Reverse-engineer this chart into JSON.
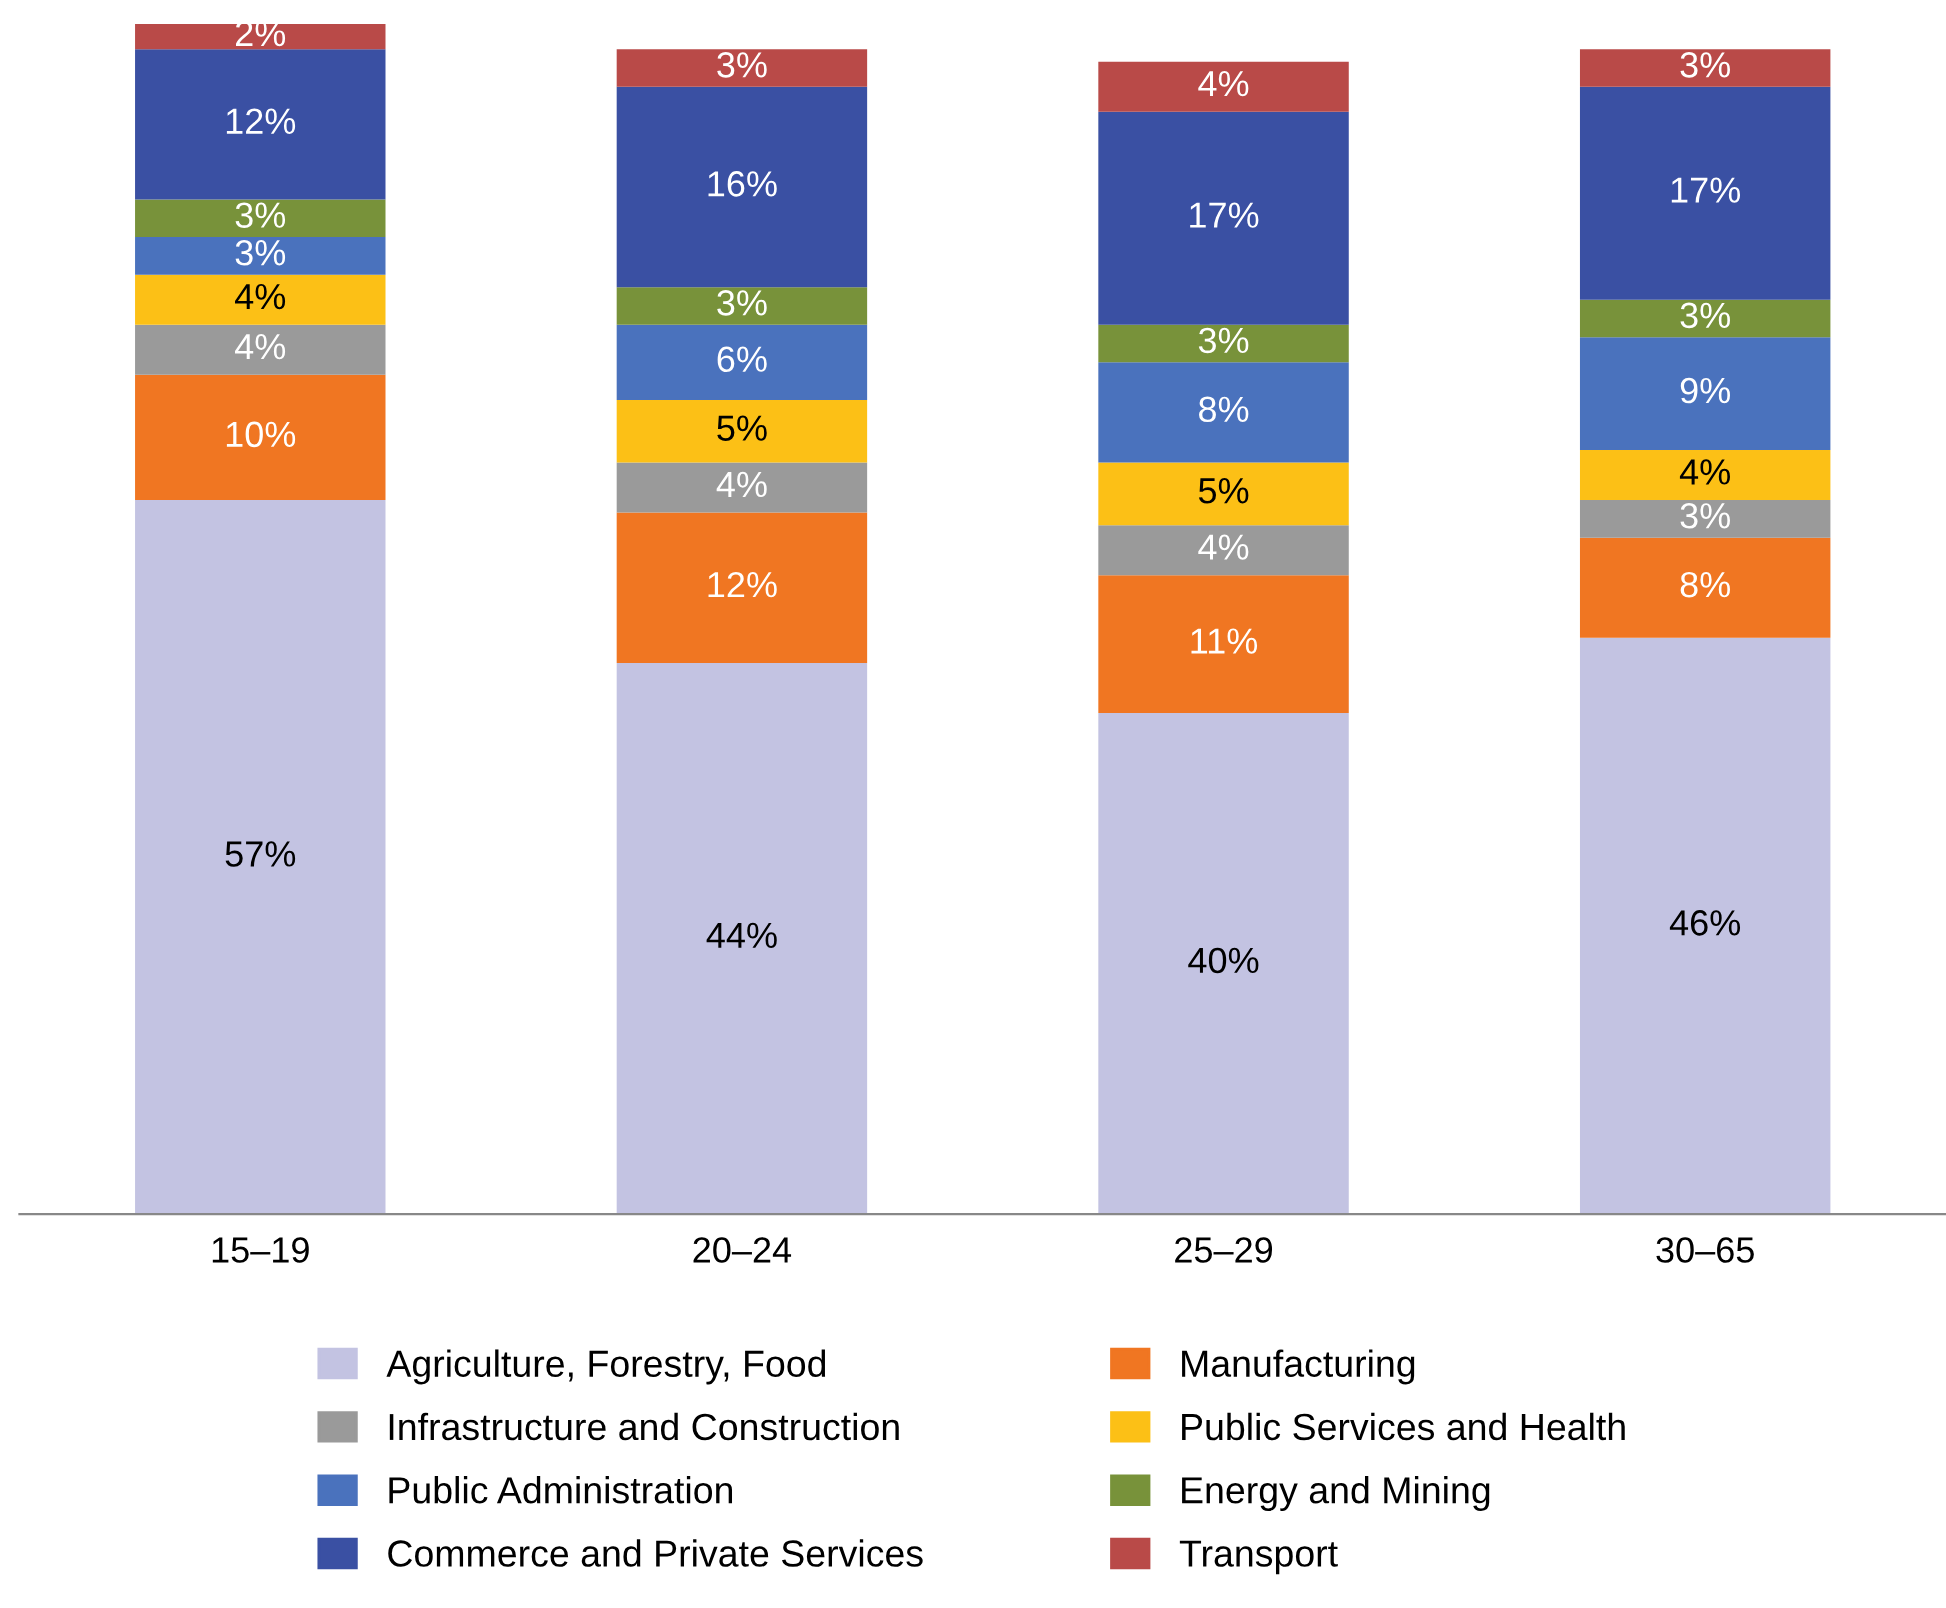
{
  "chart_data": {
    "type": "bar",
    "stacked": true,
    "grid": false,
    "legend": "bottom",
    "categories": [
      "15–19",
      "20–24",
      "25–29",
      "30–65"
    ],
    "series": [
      {
        "name": "Agriculture, Forestry, Food",
        "color": "#c3c3e2",
        "values": [
          57,
          44,
          40,
          46
        ],
        "value_labels": [
          "57%",
          "44%",
          "40%",
          "46%"
        ]
      },
      {
        "name": "Manufacturing",
        "color": "#f07622",
        "values": [
          10,
          12,
          11,
          8
        ],
        "value_labels": [
          "10%",
          "12%",
          "11%",
          "8%"
        ]
      },
      {
        "name": "Infrastructure and Construction",
        "color": "#9a9a9a",
        "values": [
          4,
          4,
          4,
          3
        ],
        "value_labels": [
          "4%",
          "4%",
          "4%",
          "3%"
        ]
      },
      {
        "name": "Public Services and Health",
        "color": "#fcc016",
        "values": [
          4,
          5,
          5,
          4
        ],
        "value_labels": [
          "4%",
          "5%",
          "5%",
          "4%"
        ]
      },
      {
        "name": "Public Administration",
        "color": "#4a72bd",
        "values": [
          3,
          6,
          8,
          9
        ],
        "value_labels": [
          "3%",
          "6%",
          "8%",
          "9%"
        ]
      },
      {
        "name": "Energy and Mining",
        "color": "#78923a",
        "values": [
          3,
          3,
          3,
          3
        ],
        "value_labels": [
          "3%",
          "3%",
          "3%",
          "3%"
        ]
      },
      {
        "name": "Commerce and Private Services",
        "color": "#3a50a3",
        "values": [
          12,
          16,
          17,
          17
        ],
        "value_labels": [
          "12%",
          "16%",
          "17%",
          "17%"
        ]
      },
      {
        "name": "Transport",
        "color": "#b94a48",
        "values": [
          2,
          3,
          4,
          3
        ],
        "value_labels": [
          "2%",
          "3%",
          "4%",
          "3%"
        ]
      }
    ]
  }
}
